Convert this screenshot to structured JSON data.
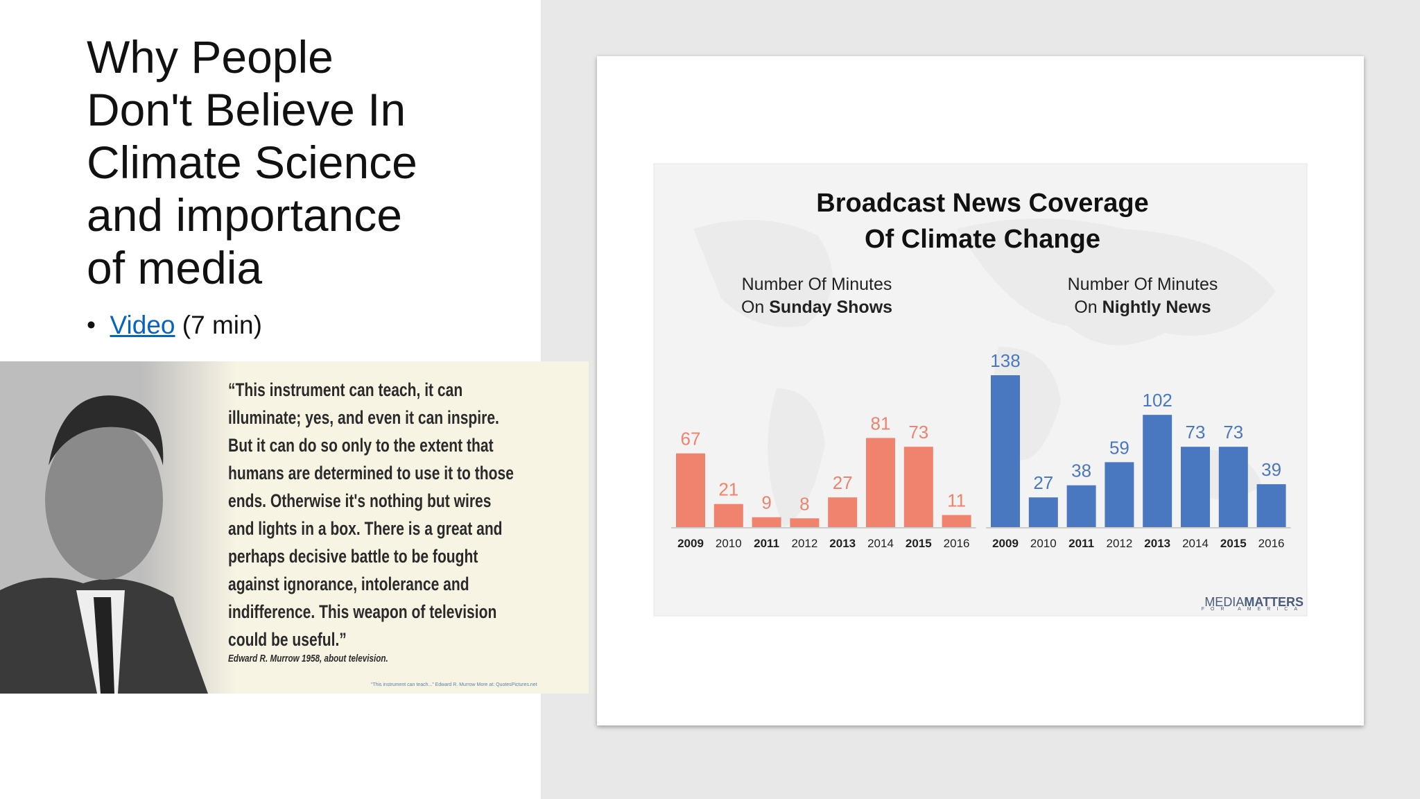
{
  "slide": {
    "title_lines": [
      "Why People",
      "Don't Believe In",
      "Climate Science",
      "and importance",
      "of media"
    ],
    "bullet": {
      "link": "Video",
      "text": "(7 min)"
    },
    "quote": {
      "lines": [
        "“This instrument can teach, it can",
        "illuminate; yes, and even it can inspire.",
        "But it can do so only to the extent that",
        "humans are determined to use it to those",
        "ends. Otherwise it's nothing but wires",
        "and lights in a box. There is a great and",
        "perhaps decisive battle to be fought",
        "against ignorance, intolerance and",
        "indifference. This weapon of television",
        "could be useful.”"
      ],
      "attribution": "Edward R. Murrow 1958, about television.",
      "footer": "“This instrument can teach...” Edward R. Murrow   More at: QuotesPictures.net"
    }
  },
  "figure": {
    "title_lines": [
      "Broadcast News Coverage",
      "Of Climate Change"
    ],
    "credit": [
      "MEDIA",
      "MATTERS",
      "FOR AMERICA"
    ]
  },
  "chart_data": [
    {
      "type": "bar",
      "subtitle": [
        "Number Of Minutes",
        "On",
        "Sunday Shows"
      ],
      "categories": [
        "2009",
        "2010",
        "2011",
        "2012",
        "2013",
        "2014",
        "2015",
        "2016"
      ],
      "values": [
        67,
        21,
        9,
        8,
        27,
        81,
        73,
        11
      ],
      "color": "#f0836d"
    },
    {
      "type": "bar",
      "subtitle": [
        "Number Of Minutes",
        "On",
        "Nightly News"
      ],
      "categories": [
        "2009",
        "2010",
        "2011",
        "2012",
        "2013",
        "2014",
        "2015",
        "2016"
      ],
      "values": [
        138,
        27,
        38,
        59,
        102,
        73,
        73,
        39
      ],
      "color": "#4a78c0"
    }
  ]
}
